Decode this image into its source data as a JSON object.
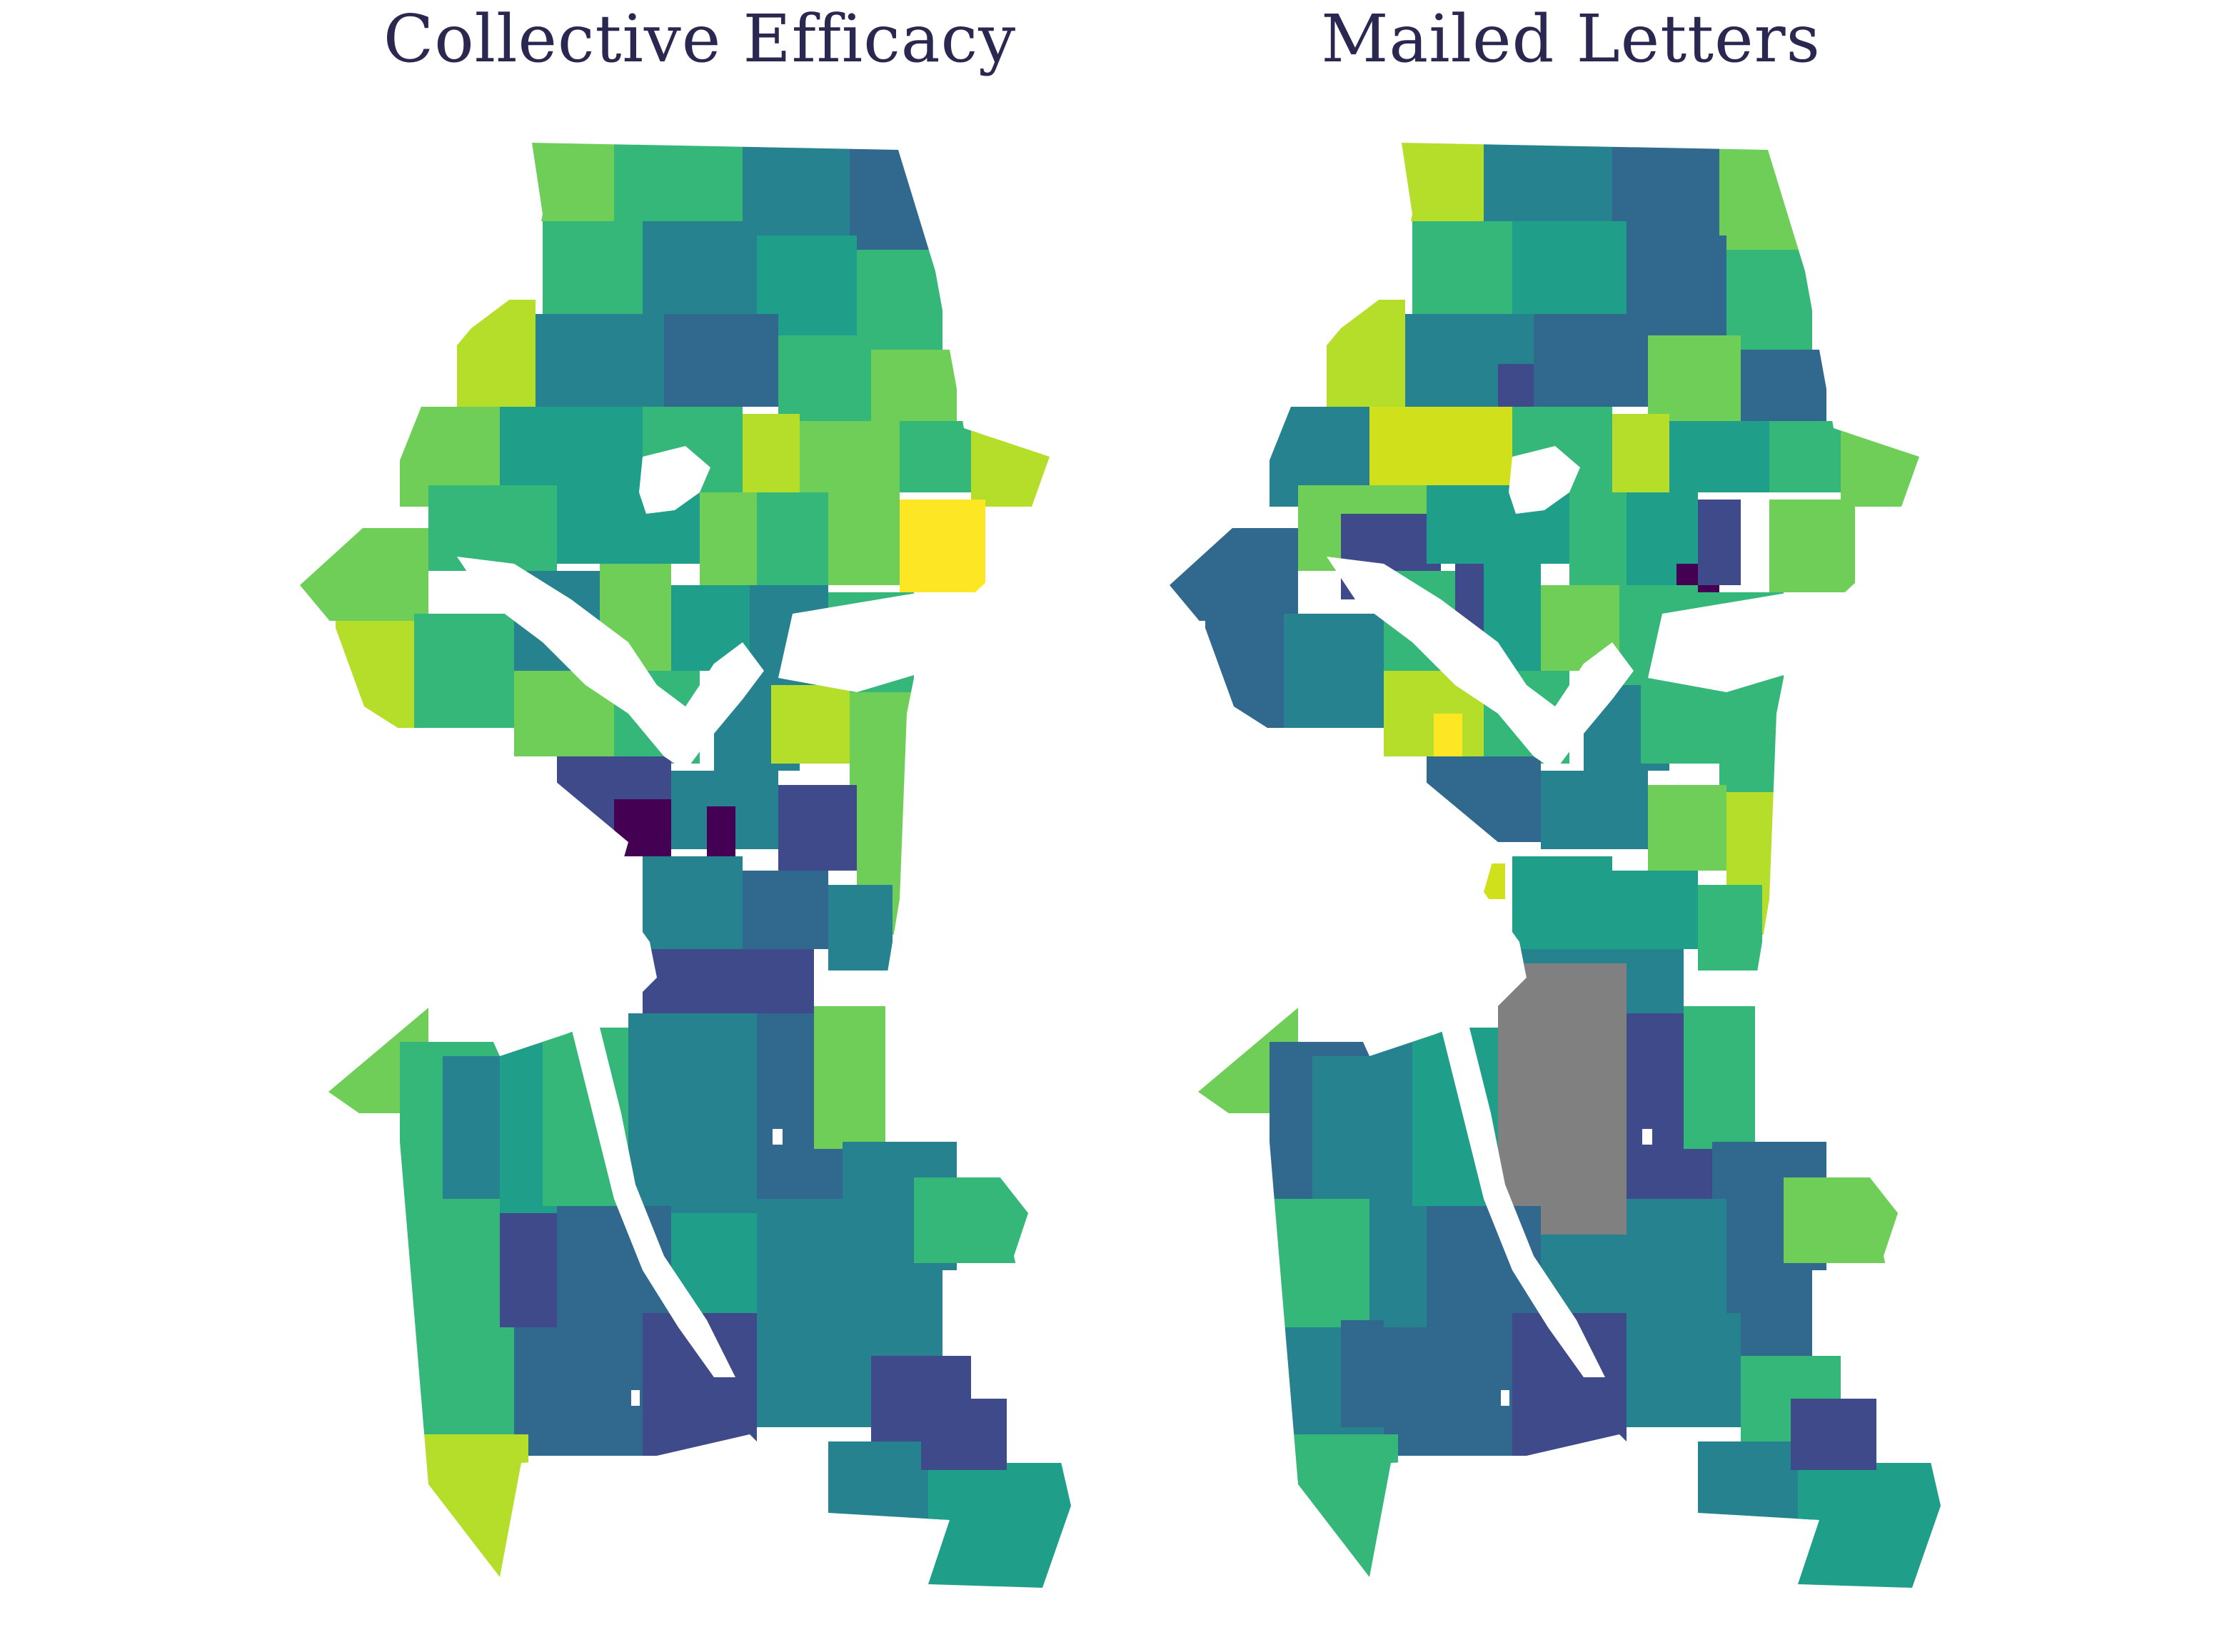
{
  "panels": [
    {
      "id": "left",
      "title": "Collective Efficacy"
    },
    {
      "id": "right",
      "title": "Mailed Letters"
    }
  ],
  "colors": {
    "palette": [
      "#440154",
      "#3e4a89",
      "#31688e",
      "#26828e",
      "#1f9e89",
      "#35b779",
      "#6ece58",
      "#b5de2b",
      "#fde725"
    ],
    "missing": "#808080",
    "water": "#ffffff",
    "title": "#2a2850"
  }
}
